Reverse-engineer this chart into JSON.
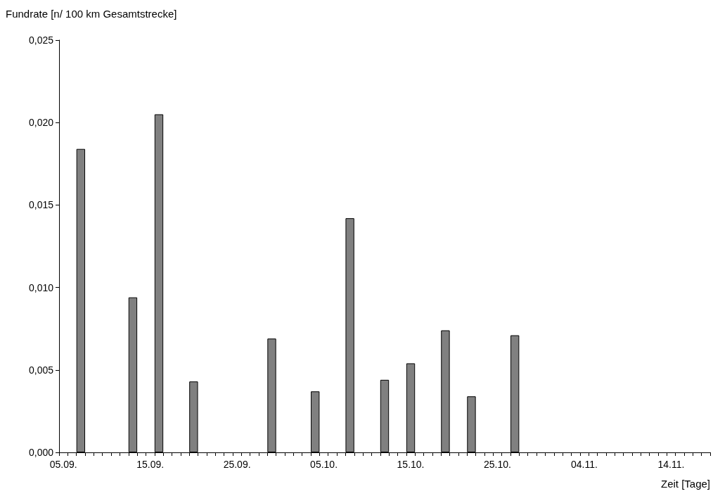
{
  "chart_data": {
    "type": "bar",
    "ylabel": "Fundrate [n/ 100 km Gesamtstrecke]",
    "xlabel": "Zeit [Tage]",
    "categories": [
      "05.09.",
      null,
      null,
      null,
      null,
      null,
      null,
      null,
      null,
      null,
      "15.09.",
      null,
      null,
      null,
      null,
      null,
      null,
      null,
      null,
      null,
      "25.09.",
      null,
      null,
      null,
      null,
      null,
      null,
      null,
      null,
      null,
      "05.10.",
      null,
      null,
      null,
      null,
      null,
      null,
      null,
      null,
      null,
      "15.10.",
      null,
      null,
      null,
      null,
      null,
      null,
      null,
      null,
      null,
      "25.10.",
      null,
      null,
      null,
      null,
      null,
      null,
      null,
      null,
      null,
      "04.11.",
      null,
      null,
      null,
      null,
      null,
      null,
      null,
      null,
      null,
      "14.11.",
      null,
      null,
      null,
      null
    ],
    "values": [
      null,
      null,
      0.0184,
      null,
      null,
      null,
      null,
      null,
      0.0094,
      null,
      null,
      0.0205,
      null,
      null,
      null,
      0.0043,
      null,
      null,
      null,
      null,
      null,
      null,
      null,
      null,
      0.0069,
      null,
      null,
      null,
      null,
      0.0037,
      null,
      null,
      null,
      0.0142,
      null,
      null,
      null,
      0.0044,
      null,
      null,
      0.0054,
      null,
      null,
      null,
      0.0074,
      null,
      null,
      0.0034,
      null,
      null,
      null,
      null,
      0.0071,
      null,
      null,
      null,
      null,
      null,
      null,
      null,
      null,
      null,
      null,
      null,
      null,
      null,
      null,
      null,
      null,
      null,
      null,
      null,
      null,
      null,
      null
    ],
    "color": "#808080",
    "ylim": [
      0,
      0.025
    ],
    "yticks": [
      {
        "value": 0,
        "label": "0,000"
      },
      {
        "value": 0.005,
        "label": "0,005"
      },
      {
        "value": 0.01,
        "label": "0,010"
      },
      {
        "value": 0.015,
        "label": "0,015"
      },
      {
        "value": 0.02,
        "label": "0,020"
      },
      {
        "value": 0.025,
        "label": "0,025"
      }
    ]
  }
}
